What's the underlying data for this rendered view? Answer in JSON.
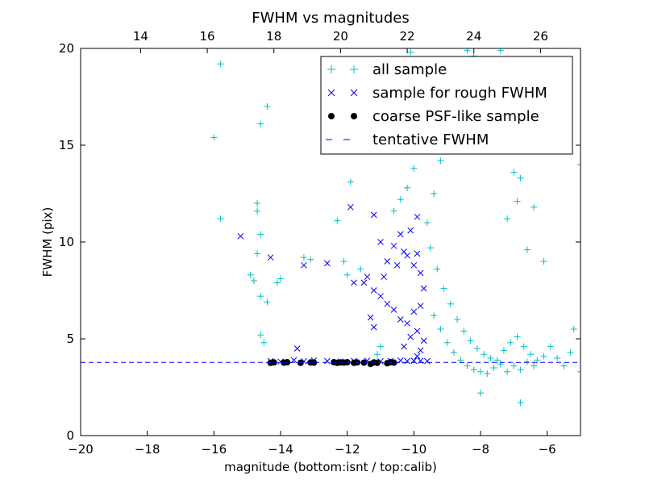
{
  "chart_data": {
    "type": "scatter",
    "title": "FWHM vs magnitudes",
    "xlabel": "magnitude (bottom:isnt / top:calib)",
    "ylabel": "FWHM (pix)",
    "xlim": [
      -20,
      -5
    ],
    "ylim": [
      0,
      20
    ],
    "xticks": [
      -20,
      -18,
      -16,
      -14,
      -12,
      -10,
      -8,
      -6
    ],
    "yticks": [
      0,
      5,
      10,
      15,
      20
    ],
    "top_axis": {
      "ticks": [
        14,
        16,
        18,
        20,
        22,
        24,
        26
      ],
      "offset": 32.2
    },
    "legend": {
      "position": "top-right",
      "entries": [
        {
          "label": "all sample",
          "marker": "plus",
          "color": "#00bfbf"
        },
        {
          "label": "sample for rough FWHM",
          "marker": "x",
          "color": "#0000ff"
        },
        {
          "label": "coarse PSF-like sample",
          "marker": "dot",
          "color": "#000000"
        },
        {
          "label": "tentative FWHM",
          "marker": "dashed-line",
          "color": "#0000ff"
        }
      ]
    },
    "tentative_fwhm": 3.78,
    "series": [
      {
        "name": "all sample",
        "marker": "plus",
        "color": "#00bfbf",
        "points": [
          [
            -15.8,
            19.2
          ],
          [
            -16.0,
            15.4
          ],
          [
            -15.8,
            11.2
          ],
          [
            -14.4,
            17.0
          ],
          [
            -14.6,
            16.1
          ],
          [
            -14.7,
            12.0
          ],
          [
            -14.7,
            11.6
          ],
          [
            -14.6,
            10.4
          ],
          [
            -14.7,
            9.4
          ],
          [
            -14.9,
            8.3
          ],
          [
            -14.8,
            8.0
          ],
          [
            -14.6,
            7.2
          ],
          [
            -14.4,
            6.9
          ],
          [
            -14.0,
            8.1
          ],
          [
            -14.1,
            7.9
          ],
          [
            -13.3,
            9.2
          ],
          [
            -13.1,
            9.1
          ],
          [
            -12.3,
            11.1
          ],
          [
            -12.1,
            9.0
          ],
          [
            -12.0,
            8.3
          ],
          [
            -11.6,
            8.6
          ],
          [
            -11.9,
            13.1
          ],
          [
            -11.7,
            16.4
          ],
          [
            -11.2,
            15.1
          ],
          [
            -10.9,
            16.0
          ],
          [
            -10.7,
            17.0
          ],
          [
            -10.5,
            18.5
          ],
          [
            -10.1,
            19.8
          ],
          [
            -10.6,
            11.6
          ],
          [
            -10.4,
            12.2
          ],
          [
            -10.2,
            12.8
          ],
          [
            -10.0,
            13.8
          ],
          [
            -9.9,
            15.1
          ],
          [
            -9.8,
            17.2
          ],
          [
            -14.6,
            5.2
          ],
          [
            -14.5,
            4.8
          ],
          [
            -11.1,
            4.2
          ],
          [
            -11.0,
            4.6
          ],
          [
            -9.2,
            14.2
          ],
          [
            -8.9,
            16.0
          ],
          [
            -8.6,
            17.8
          ],
          [
            -8.2,
            19.6
          ],
          [
            -7.9,
            17.6
          ],
          [
            -7.6,
            16.2
          ],
          [
            -7.3,
            14.8
          ],
          [
            -7.0,
            13.6
          ],
          [
            -6.8,
            13.3
          ],
          [
            -6.4,
            11.8
          ],
          [
            -6.1,
            9.0
          ],
          [
            -6.6,
            9.6
          ],
          [
            -5.2,
            5.5
          ],
          [
            -5.0,
            3.3
          ],
          [
            -5.0,
            14.0
          ],
          [
            -8.0,
            2.2
          ],
          [
            -6.8,
            1.7
          ],
          [
            -9.0,
            18.8
          ],
          [
            -8.4,
            19.9
          ],
          [
            -7.4,
            19.9
          ],
          [
            -7.8,
            18.9
          ],
          [
            -6.6,
            15.3
          ],
          [
            -6.9,
            12.1
          ],
          [
            -7.2,
            11.2
          ],
          [
            -9.4,
            12.5
          ],
          [
            -9.6,
            11.0
          ],
          [
            -9.5,
            9.7
          ],
          [
            -9.3,
            8.6
          ],
          [
            -9.1,
            7.6
          ],
          [
            -8.9,
            6.8
          ],
          [
            -8.7,
            6.0
          ],
          [
            -8.5,
            5.4
          ],
          [
            -8.3,
            4.9
          ],
          [
            -8.1,
            4.5
          ],
          [
            -7.9,
            4.2
          ],
          [
            -7.7,
            4.0
          ],
          [
            -7.5,
            3.9
          ],
          [
            -7.3,
            4.4
          ],
          [
            -7.1,
            4.8
          ],
          [
            -6.9,
            5.1
          ],
          [
            -6.7,
            4.6
          ],
          [
            -6.5,
            4.2
          ],
          [
            -6.3,
            3.9
          ],
          [
            -6.1,
            4.1
          ],
          [
            -5.9,
            4.6
          ],
          [
            -5.7,
            4.0
          ],
          [
            -5.5,
            3.6
          ],
          [
            -5.3,
            4.3
          ],
          [
            -9.4,
            6.2
          ],
          [
            -9.2,
            5.5
          ],
          [
            -9.0,
            4.8
          ],
          [
            -8.8,
            4.3
          ],
          [
            -8.6,
            3.9
          ],
          [
            -8.4,
            3.6
          ],
          [
            -8.2,
            3.4
          ],
          [
            -8.0,
            3.3
          ],
          [
            -7.8,
            3.2
          ],
          [
            -7.6,
            3.5
          ],
          [
            -7.4,
            3.7
          ],
          [
            -7.2,
            3.3
          ],
          [
            -7.0,
            3.6
          ],
          [
            -6.8,
            3.4
          ],
          [
            -6.6,
            3.8
          ],
          [
            -6.4,
            3.6
          ]
        ]
      },
      {
        "name": "sample for rough FWHM",
        "marker": "x",
        "color": "#0000ff",
        "points": [
          [
            -15.2,
            10.3
          ],
          [
            -14.3,
            9.2
          ],
          [
            -13.3,
            8.8
          ],
          [
            -12.6,
            8.9
          ],
          [
            -11.9,
            11.8
          ],
          [
            -11.2,
            11.4
          ],
          [
            -10.6,
            9.8
          ],
          [
            -11.0,
            10.0
          ],
          [
            -10.8,
            9.0
          ],
          [
            -10.9,
            8.2
          ],
          [
            -10.5,
            8.8
          ],
          [
            -10.3,
            9.5
          ],
          [
            -10.1,
            10.6
          ],
          [
            -9.9,
            11.3
          ],
          [
            -10.4,
            10.4
          ],
          [
            -10.2,
            9.3
          ],
          [
            -10.0,
            8.8
          ],
          [
            -9.9,
            9.4
          ],
          [
            -11.2,
            7.5
          ],
          [
            -11.5,
            7.9
          ],
          [
            -11.0,
            7.2
          ],
          [
            -10.8,
            6.8
          ],
          [
            -11.3,
            6.1
          ],
          [
            -11.2,
            5.6
          ],
          [
            -10.6,
            6.5
          ],
          [
            -10.4,
            6.0
          ],
          [
            -10.2,
            5.8
          ],
          [
            -10.0,
            6.4
          ],
          [
            -9.8,
            6.7
          ],
          [
            -9.7,
            7.6
          ],
          [
            -9.8,
            8.4
          ],
          [
            -9.9,
            5.4
          ],
          [
            -10.1,
            5.1
          ],
          [
            -9.7,
            4.9
          ],
          [
            -10.3,
            4.6
          ],
          [
            -9.8,
            4.4
          ],
          [
            -13.5,
            4.5
          ],
          [
            -11.8,
            7.9
          ],
          [
            -11.4,
            8.2
          ],
          [
            -9.9,
            4.1
          ],
          [
            -14.3,
            3.85
          ],
          [
            -14.0,
            3.82
          ],
          [
            -13.6,
            3.9
          ],
          [
            -13.3,
            3.84
          ],
          [
            -13.0,
            3.88
          ],
          [
            -12.6,
            3.85
          ],
          [
            -12.2,
            3.83
          ],
          [
            -11.8,
            3.86
          ],
          [
            -11.4,
            3.87
          ],
          [
            -11.0,
            3.84
          ],
          [
            -10.7,
            3.86
          ],
          [
            -10.4,
            3.88
          ],
          [
            -10.2,
            3.85
          ],
          [
            -10.0,
            3.87
          ],
          [
            -9.8,
            3.86
          ],
          [
            -9.6,
            3.85
          ]
        ]
      },
      {
        "name": "coarse PSF-like sample",
        "marker": "dot",
        "color": "#000000",
        "points": [
          [
            -14.3,
            3.76
          ],
          [
            -14.2,
            3.78
          ],
          [
            -13.9,
            3.77
          ],
          [
            -13.8,
            3.79
          ],
          [
            -13.4,
            3.76
          ],
          [
            -13.1,
            3.78
          ],
          [
            -13.0,
            3.77
          ],
          [
            -12.4,
            3.79
          ],
          [
            -12.3,
            3.76
          ],
          [
            -12.2,
            3.78
          ],
          [
            -12.1,
            3.77
          ],
          [
            -12.0,
            3.79
          ],
          [
            -11.8,
            3.76
          ],
          [
            -11.7,
            3.78
          ],
          [
            -11.5,
            3.77
          ],
          [
            -11.3,
            3.7
          ],
          [
            -11.2,
            3.78
          ],
          [
            -11.1,
            3.76
          ],
          [
            -10.8,
            3.74
          ],
          [
            -10.7,
            3.79
          ],
          [
            -10.6,
            3.77
          ]
        ]
      }
    ]
  }
}
